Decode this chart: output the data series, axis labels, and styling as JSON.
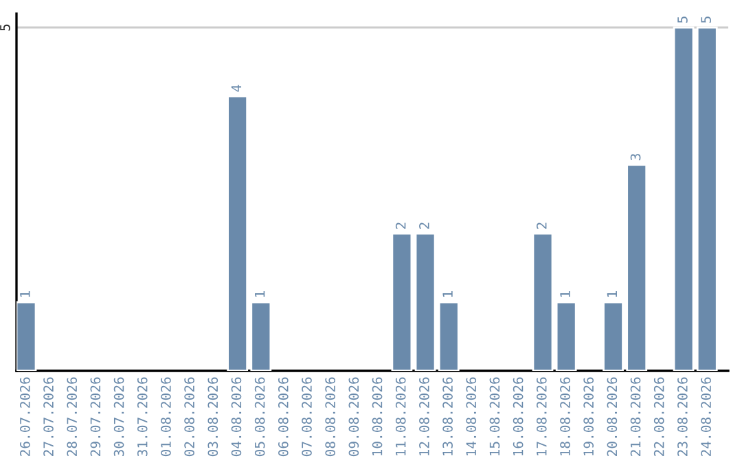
{
  "chart_data": {
    "type": "bar",
    "categories": [
      "26.07.2026",
      "27.07.2026",
      "28.07.2026",
      "29.07.2026",
      "30.07.2026",
      "31.07.2026",
      "01.08.2026",
      "02.08.2026",
      "03.08.2026",
      "04.08.2026",
      "05.08.2026",
      "06.08.2026",
      "07.08.2026",
      "08.08.2026",
      "09.08.2026",
      "10.08.2026",
      "11.08.2026",
      "12.08.2026",
      "13.08.2026",
      "14.08.2026",
      "15.08.2026",
      "16.08.2026",
      "17.08.2026",
      "18.08.2026",
      "19.08.2026",
      "20.08.2026",
      "21.08.2026",
      "22.08.2026",
      "23.08.2026",
      "24.08.2026"
    ],
    "values": [
      1,
      null,
      null,
      null,
      null,
      null,
      null,
      null,
      null,
      4,
      1,
      null,
      null,
      null,
      null,
      null,
      2,
      2,
      1,
      null,
      null,
      null,
      2,
      1,
      null,
      1,
      3,
      null,
      5,
      5
    ],
    "data_labels": true,
    "color": "#6a8aab",
    "ylim": [
      0,
      5.2
    ],
    "yticks": [
      5
    ],
    "grid": "y"
  }
}
